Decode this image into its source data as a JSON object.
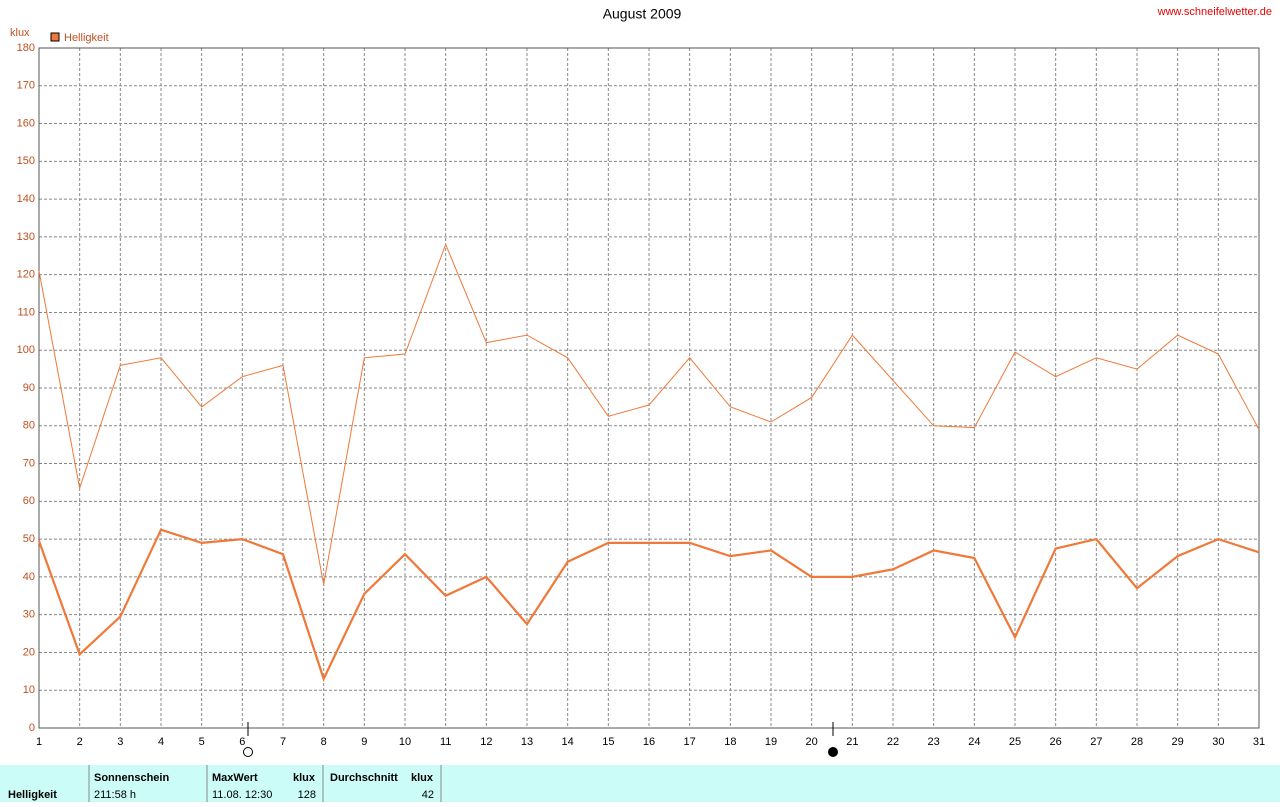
{
  "chart_data": {
    "type": "line",
    "title": "August 2009",
    "source": "www.schneifelwetter.de",
    "y_label": "klux",
    "x": [
      1,
      2,
      3,
      4,
      5,
      6,
      7,
      8,
      9,
      10,
      11,
      12,
      13,
      14,
      15,
      16,
      17,
      18,
      19,
      20,
      21,
      22,
      23,
      24,
      25,
      26,
      27,
      28,
      29,
      30,
      31
    ],
    "xlim": [
      1,
      31
    ],
    "xticks": [
      1,
      2,
      3,
      4,
      5,
      6,
      7,
      8,
      9,
      10,
      11,
      12,
      13,
      14,
      15,
      16,
      17,
      18,
      19,
      20,
      21,
      22,
      23,
      24,
      25,
      26,
      27,
      28,
      29,
      30,
      31
    ],
    "ylim": [
      0,
      180
    ],
    "yticks": [
      0,
      10,
      20,
      30,
      40,
      50,
      60,
      70,
      80,
      90,
      100,
      110,
      120,
      130,
      140,
      150,
      160,
      170,
      180
    ],
    "grid": true,
    "series": [
      {
        "name": "Helligkeit",
        "color": "#f07838",
        "values": [
          121,
          63.5,
          96,
          98,
          85,
          93,
          96,
          38,
          98,
          99,
          128,
          102,
          104,
          98,
          82.5,
          85.5,
          98,
          85,
          81,
          87.5,
          104,
          92,
          80,
          79.5,
          99.5,
          93,
          98,
          95,
          104,
          99,
          79
        ]
      },
      {
        "color": "#f07838",
        "values": [
          49.5,
          19.5,
          29.5,
          52.5,
          49,
          50,
          46,
          13,
          35.5,
          46,
          35,
          40,
          27.5,
          44,
          49,
          49,
          49,
          45.5,
          47,
          40,
          40,
          42,
          47,
          45,
          24,
          47.5,
          50,
          37,
          45.5,
          50,
          46.5
        ]
      }
    ]
  },
  "summary": {
    "row_label": "Helligkeit",
    "sun_label": "Sonnenschein",
    "sun_value": "211:58 h",
    "max_label": "MaxWert",
    "max_unit": "klux",
    "max_date": "11.08.  12:30",
    "max_value": "128",
    "avg_label": "Durchschnitt",
    "avg_unit": "klux",
    "avg_value": "42"
  }
}
